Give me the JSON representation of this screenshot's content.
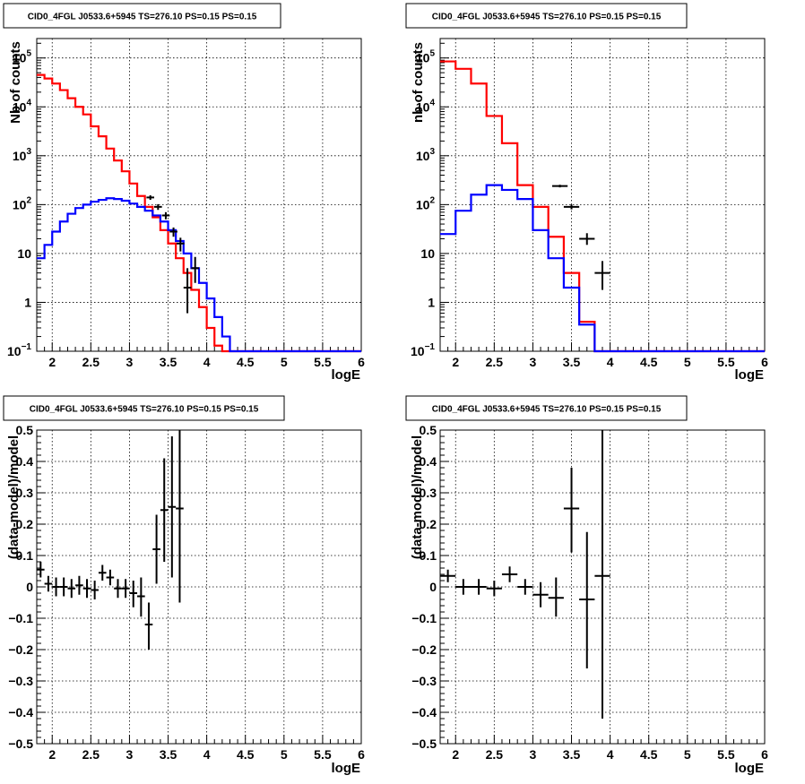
{
  "colors": {
    "model_total": "#ff0000",
    "model_source": "#0000ff",
    "data": "#000000",
    "grid": "#000000"
  },
  "chart_data": [
    {
      "type": "line",
      "title": "CID0_4FGL J0533.6+5945 TS=276.10 PS=0.15 PS=0.15",
      "xlabel": "logE",
      "ylabel": "Nb of counts",
      "xlim": [
        1.8,
        6
      ],
      "ylim": [
        0.1,
        250000
      ],
      "log_y": true,
      "grid": true,
      "x_ticks": [
        {
          "v": 2,
          "label": "2"
        },
        {
          "v": 2.5,
          "label": "2.5"
        },
        {
          "v": 3,
          "label": "3"
        },
        {
          "v": 3.5,
          "label": "3.5"
        },
        {
          "v": 4,
          "label": "4"
        },
        {
          "v": 4.5,
          "label": "4.5"
        },
        {
          "v": 5,
          "label": "5"
        },
        {
          "v": 5.5,
          "label": "5.5"
        },
        {
          "v": 6,
          "label": "6"
        }
      ],
      "y_ticks": [
        {
          "v": 0.1,
          "mant": "10",
          "exp": "−1"
        },
        {
          "v": 1,
          "mant": "1",
          "exp": ""
        },
        {
          "v": 10,
          "mant": "10",
          "exp": ""
        },
        {
          "v": 100,
          "mant": "10",
          "exp": "2"
        },
        {
          "v": 1000,
          "mant": "10",
          "exp": "3"
        },
        {
          "v": 10000,
          "mant": "10",
          "exp": "4"
        },
        {
          "v": 100000,
          "mant": "10",
          "exp": "5"
        }
      ],
      "bins": {
        "start": 1.8,
        "width": 0.1
      },
      "series": [
        {
          "key": "red",
          "values": [
            45000,
            38000,
            30000,
            22000,
            15000,
            10000,
            7000,
            4000,
            2500,
            1400,
            800,
            480,
            270,
            150,
            90,
            55,
            30,
            16,
            8,
            4,
            1.8,
            0.8,
            0.3,
            0.13,
            0.1,
            0.1,
            0.1,
            0.1,
            0.1,
            0.1,
            0.1,
            0.1,
            0.1,
            0.1,
            0.1,
            0.1,
            0.1,
            0.1,
            0.1,
            0.1,
            0.1,
            0.1
          ]
        },
        {
          "key": "blue",
          "values": [
            8,
            15,
            28,
            45,
            65,
            85,
            100,
            115,
            125,
            135,
            130,
            120,
            105,
            90,
            75,
            60,
            45,
            30,
            18,
            10,
            5,
            2.5,
            1.2,
            0.5,
            0.2,
            0.1,
            0.1,
            0.1,
            0.1,
            0.1,
            0.1,
            0.1,
            0.1,
            0.1,
            0.1,
            0.1,
            0.1,
            0.1,
            0.1,
            0.1,
            0.1,
            0.1
          ]
        }
      ],
      "points": [
        {
          "x": 3.27,
          "y": 140,
          "lo": 125,
          "hi": 155,
          "xe": 0.05
        },
        {
          "x": 3.37,
          "y": 90,
          "lo": 78,
          "hi": 102,
          "xe": 0.05
        },
        {
          "x": 3.47,
          "y": 60,
          "lo": 50,
          "hi": 70,
          "xe": 0.05
        },
        {
          "x": 3.57,
          "y": 28,
          "lo": 22,
          "hi": 34,
          "xe": 0.05
        },
        {
          "x": 3.66,
          "y": 16,
          "lo": 11,
          "hi": 21,
          "xe": 0.05
        },
        {
          "x": 3.75,
          "y": 2,
          "lo": 0.6,
          "hi": 5,
          "xe": 0.05
        },
        {
          "x": 3.85,
          "y": 5,
          "lo": 2.5,
          "hi": 8.5,
          "xe": 0.05
        }
      ]
    },
    {
      "type": "line",
      "title": "CID0_4FGL J0533.6+5945 TS=276.10 PS=0.15 PS=0.15",
      "xlabel": "logE",
      "ylabel": "nb of counts",
      "xlim": [
        1.8,
        6
      ],
      "ylim": [
        0.1,
        250000
      ],
      "log_y": true,
      "grid": true,
      "x_ticks": [
        {
          "v": 2,
          "label": "2"
        },
        {
          "v": 2.5,
          "label": "2.5"
        },
        {
          "v": 3,
          "label": "3"
        },
        {
          "v": 3.5,
          "label": "3.5"
        },
        {
          "v": 4,
          "label": "4"
        },
        {
          "v": 4.5,
          "label": "4.5"
        },
        {
          "v": 5,
          "label": "5"
        },
        {
          "v": 5.5,
          "label": "5.5"
        },
        {
          "v": 6,
          "label": "6"
        }
      ],
      "y_ticks": [
        {
          "v": 0.1,
          "mant": "10",
          "exp": "−1"
        },
        {
          "v": 1,
          "mant": "1",
          "exp": ""
        },
        {
          "v": 10,
          "mant": "10",
          "exp": ""
        },
        {
          "v": 100,
          "mant": "10",
          "exp": "2"
        },
        {
          "v": 1000,
          "mant": "10",
          "exp": "3"
        },
        {
          "v": 10000,
          "mant": "10",
          "exp": "4"
        },
        {
          "v": 100000,
          "mant": "10",
          "exp": "5"
        }
      ],
      "bins": {
        "start": 1.8,
        "width": 0.2
      },
      "series": [
        {
          "key": "red",
          "values": [
            85000,
            60000,
            30000,
            6500,
            1800,
            250,
            90,
            22,
            4,
            0.4,
            0.1,
            0.1,
            0.1,
            0.1,
            0.1,
            0.1,
            0.1,
            0.1,
            0.1,
            0.1,
            0.1
          ]
        },
        {
          "key": "blue",
          "values": [
            25,
            75,
            160,
            250,
            200,
            130,
            30,
            8,
            2,
            0.35,
            0.1,
            0.1,
            0.1,
            0.1,
            0.1,
            0.1,
            0.1,
            0.1,
            0.1,
            0.1,
            0.1
          ]
        }
      ],
      "points": [
        {
          "x": 3.35,
          "y": 240,
          "lo": 225,
          "hi": 255,
          "xe": 0.1
        },
        {
          "x": 3.5,
          "y": 90,
          "lo": 80,
          "hi": 100,
          "xe": 0.1
        },
        {
          "x": 3.7,
          "y": 20,
          "lo": 15,
          "hi": 26,
          "xe": 0.1
        },
        {
          "x": 3.9,
          "y": 4,
          "lo": 1.8,
          "hi": 7,
          "xe": 0.1
        }
      ]
    },
    {
      "type": "scatter",
      "title": "CID0_4FGL J0533.6+5945 TS=276.10 PS=0.15 PS=0.15",
      "xlabel": "logE",
      "ylabel": "(data-model)/model",
      "xlim": [
        1.8,
        6
      ],
      "ylim": [
        -0.5,
        0.5
      ],
      "log_y": false,
      "grid": true,
      "x_ticks": [
        {
          "v": 2,
          "label": "2"
        },
        {
          "v": 2.5,
          "label": "2.5"
        },
        {
          "v": 3,
          "label": "3"
        },
        {
          "v": 3.5,
          "label": "3.5"
        },
        {
          "v": 4,
          "label": "4"
        },
        {
          "v": 4.5,
          "label": "4.5"
        },
        {
          "v": 5,
          "label": "5"
        },
        {
          "v": 5.5,
          "label": "5.5"
        },
        {
          "v": 6,
          "label": "6"
        }
      ],
      "y_ticks": [
        {
          "v": -0.5,
          "label": "−0.5"
        },
        {
          "v": -0.4,
          "label": "−0.4"
        },
        {
          "v": -0.3,
          "label": "−0.3"
        },
        {
          "v": -0.2,
          "label": "−0.2"
        },
        {
          "v": -0.1,
          "label": "−0.1"
        },
        {
          "v": 0,
          "label": "0"
        },
        {
          "v": 0.1,
          "label": "0.1"
        },
        {
          "v": 0.2,
          "label": "0.2"
        },
        {
          "v": 0.3,
          "label": "0.3"
        },
        {
          "v": 0.4,
          "label": "0.4"
        },
        {
          "v": 0.5,
          "label": "0.5"
        }
      ],
      "series": [],
      "points": [
        {
          "x": 1.85,
          "y": 0.055,
          "lo": 0.03,
          "hi": 0.08,
          "xe": 0.05
        },
        {
          "x": 1.95,
          "y": 0.01,
          "lo": -0.015,
          "hi": 0.035,
          "xe": 0.05
        },
        {
          "x": 2.05,
          "y": 0.0,
          "lo": -0.03,
          "hi": 0.03,
          "xe": 0.05
        },
        {
          "x": 2.15,
          "y": 0.0,
          "lo": -0.03,
          "hi": 0.03,
          "xe": 0.05
        },
        {
          "x": 2.25,
          "y": -0.005,
          "lo": -0.035,
          "hi": 0.025,
          "xe": 0.05
        },
        {
          "x": 2.35,
          "y": 0.005,
          "lo": -0.025,
          "hi": 0.035,
          "xe": 0.05
        },
        {
          "x": 2.45,
          "y": -0.005,
          "lo": -0.035,
          "hi": 0.025,
          "xe": 0.05
        },
        {
          "x": 2.55,
          "y": -0.01,
          "lo": -0.04,
          "hi": 0.02,
          "xe": 0.05
        },
        {
          "x": 2.65,
          "y": 0.045,
          "lo": 0.02,
          "hi": 0.07,
          "xe": 0.05
        },
        {
          "x": 2.75,
          "y": 0.03,
          "lo": 0.005,
          "hi": 0.055,
          "xe": 0.05
        },
        {
          "x": 2.85,
          "y": -0.005,
          "lo": -0.035,
          "hi": 0.025,
          "xe": 0.05
        },
        {
          "x": 2.95,
          "y": -0.005,
          "lo": -0.035,
          "hi": 0.025,
          "xe": 0.05
        },
        {
          "x": 3.05,
          "y": -0.02,
          "lo": -0.065,
          "hi": 0.02,
          "xe": 0.05
        },
        {
          "x": 3.15,
          "y": -0.03,
          "lo": -0.095,
          "hi": 0.03,
          "xe": 0.05
        },
        {
          "x": 3.25,
          "y": -0.12,
          "lo": -0.2,
          "hi": -0.05,
          "xe": 0.05
        },
        {
          "x": 3.35,
          "y": 0.12,
          "lo": 0.01,
          "hi": 0.23,
          "xe": 0.05
        },
        {
          "x": 3.45,
          "y": 0.245,
          "lo": 0.08,
          "hi": 0.41,
          "xe": 0.05
        },
        {
          "x": 3.55,
          "y": 0.255,
          "lo": 0.03,
          "hi": 0.48,
          "xe": 0.05
        },
        {
          "x": 3.65,
          "y": 0.25,
          "lo": -0.05,
          "hi": 0.5,
          "xe": 0.05
        }
      ]
    },
    {
      "type": "scatter",
      "title": "CID0_4FGL J0533.6+5945 TS=276.10 PS=0.15 PS=0.15",
      "xlabel": "logE",
      "ylabel": "(data-model)/model",
      "xlim": [
        1.8,
        6
      ],
      "ylim": [
        -0.5,
        0.5
      ],
      "log_y": false,
      "grid": true,
      "x_ticks": [
        {
          "v": 2,
          "label": "2"
        },
        {
          "v": 2.5,
          "label": "2.5"
        },
        {
          "v": 3,
          "label": "3"
        },
        {
          "v": 3.5,
          "label": "3.5"
        },
        {
          "v": 4,
          "label": "4"
        },
        {
          "v": 4.5,
          "label": "4.5"
        },
        {
          "v": 5,
          "label": "5"
        },
        {
          "v": 5.5,
          "label": "5.5"
        },
        {
          "v": 6,
          "label": "6"
        }
      ],
      "y_ticks": [
        {
          "v": -0.5,
          "label": "−0.5"
        },
        {
          "v": -0.4,
          "label": "−0.4"
        },
        {
          "v": -0.3,
          "label": "−0.3"
        },
        {
          "v": -0.2,
          "label": "−0.2"
        },
        {
          "v": -0.1,
          "label": "−0.1"
        },
        {
          "v": 0,
          "label": "0"
        },
        {
          "v": 0.1,
          "label": "0.1"
        },
        {
          "v": 0.2,
          "label": "0.2"
        },
        {
          "v": 0.3,
          "label": "0.3"
        },
        {
          "v": 0.4,
          "label": "0.4"
        },
        {
          "v": 0.5,
          "label": "0.5"
        }
      ],
      "series": [],
      "points": [
        {
          "x": 1.9,
          "y": 0.035,
          "lo": 0.015,
          "hi": 0.055,
          "xe": 0.1
        },
        {
          "x": 2.1,
          "y": 0.0,
          "lo": -0.025,
          "hi": 0.025,
          "xe": 0.1
        },
        {
          "x": 2.3,
          "y": 0.0,
          "lo": -0.025,
          "hi": 0.025,
          "xe": 0.1
        },
        {
          "x": 2.5,
          "y": -0.005,
          "lo": -0.03,
          "hi": 0.02,
          "xe": 0.1
        },
        {
          "x": 2.7,
          "y": 0.04,
          "lo": 0.015,
          "hi": 0.065,
          "xe": 0.1
        },
        {
          "x": 2.9,
          "y": 0.0,
          "lo": -0.025,
          "hi": 0.025,
          "xe": 0.1
        },
        {
          "x": 3.1,
          "y": -0.025,
          "lo": -0.065,
          "hi": 0.015,
          "xe": 0.1
        },
        {
          "x": 3.3,
          "y": -0.035,
          "lo": -0.095,
          "hi": 0.03,
          "xe": 0.1
        },
        {
          "x": 3.5,
          "y": 0.25,
          "lo": 0.11,
          "hi": 0.38,
          "xe": 0.1
        },
        {
          "x": 3.7,
          "y": -0.04,
          "lo": -0.26,
          "hi": 0.175,
          "xe": 0.1
        },
        {
          "x": 3.9,
          "y": 0.035,
          "lo": -0.42,
          "hi": 0.5,
          "xe": 0.1
        }
      ]
    }
  ]
}
